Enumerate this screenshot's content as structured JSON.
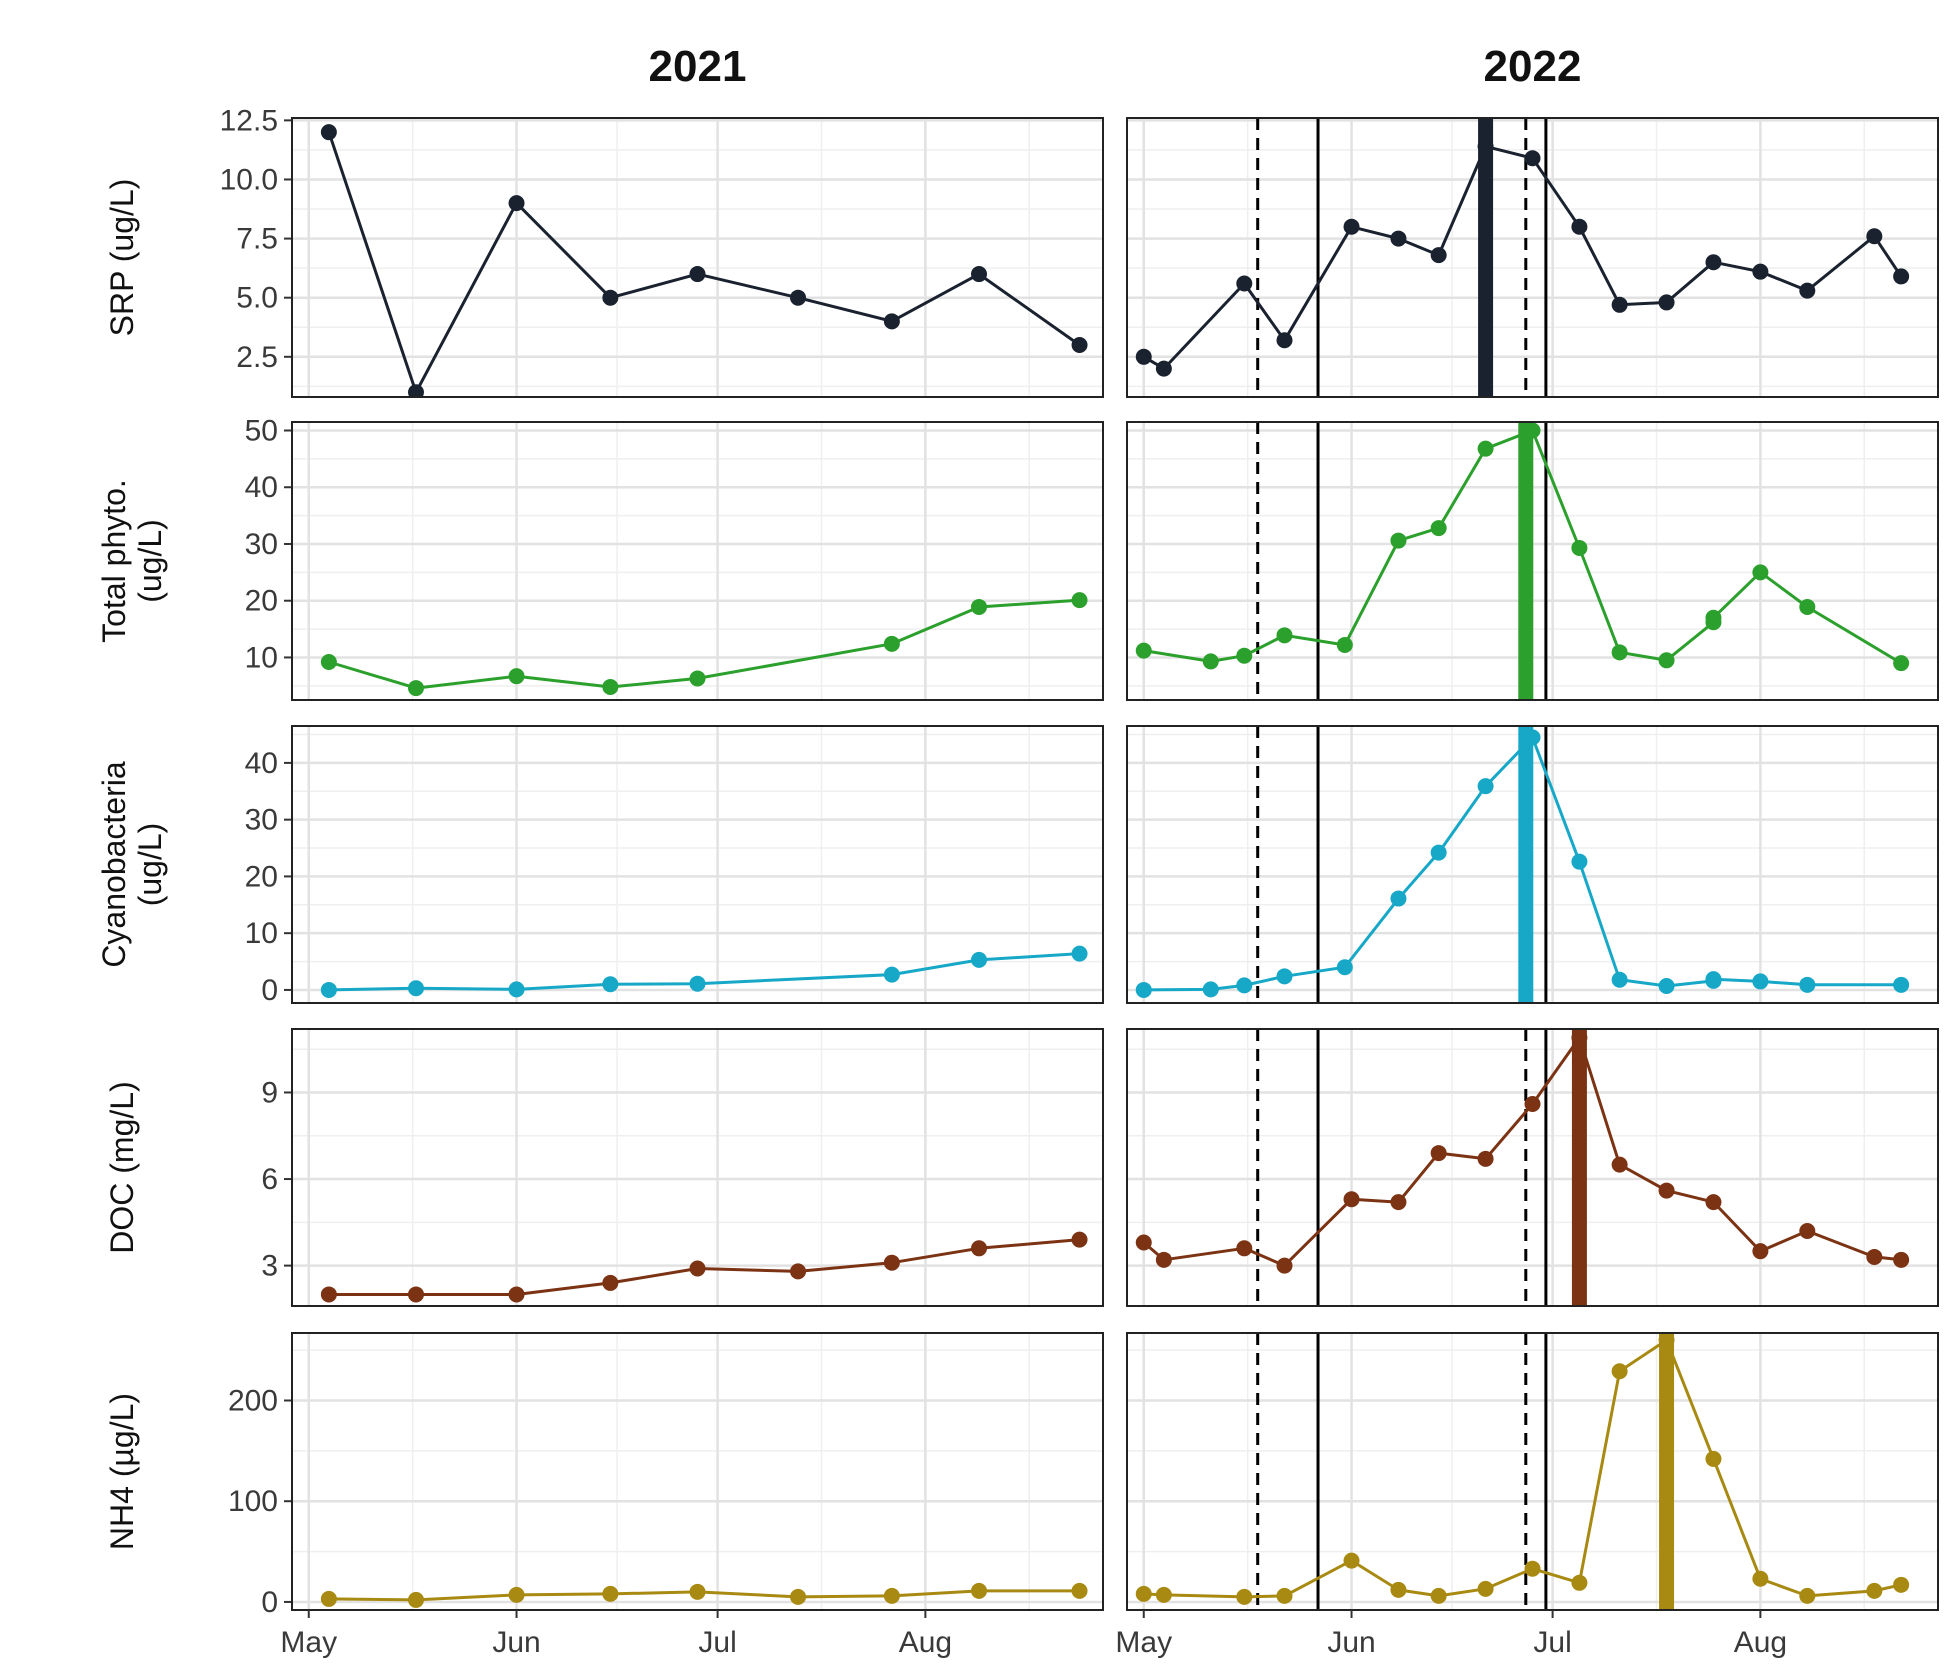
{
  "facets": [
    "2021",
    "2022"
  ],
  "x_ticks": [
    "May",
    "Jun",
    "Jul",
    "Aug"
  ],
  "chart_data": [
    {
      "type": "line",
      "ylabel": [
        "SRP (ug/L)"
      ],
      "ylim": [
        0.8,
        12.6
      ],
      "yticks": [
        2.5,
        5.0,
        7.5,
        10.0,
        12.5
      ],
      "ytick_labels": [
        "2.5",
        "5.0",
        "7.5",
        "10.0",
        "12.5"
      ],
      "color": "#1a2230",
      "series": [
        {
          "facet": "2021",
          "x": [
            "2021-05-04",
            "2021-05-17",
            "2021-06-01",
            "2021-06-15",
            "2021-06-28",
            "2021-07-13",
            "2021-07-27",
            "2021-08-09",
            "2021-08-24"
          ],
          "values": [
            12.0,
            1.0,
            9.0,
            5.0,
            6.0,
            5.0,
            4.0,
            6.0,
            3.0
          ]
        },
        {
          "facet": "2022",
          "x": [
            "2022-05-01",
            "2022-05-04",
            "2022-05-16",
            "2022-05-22",
            "2022-06-01",
            "2022-06-08",
            "2022-06-14",
            "2022-06-21",
            "2022-06-28",
            "2022-07-05",
            "2022-07-11",
            "2022-07-18",
            "2022-07-25",
            "2022-08-01",
            "2022-08-08",
            "2022-08-18",
            "2022-08-22"
          ],
          "values": [
            2.5,
            2.0,
            5.6,
            3.2,
            8.0,
            7.5,
            6.8,
            11.4,
            10.9,
            8.0,
            4.7,
            4.8,
            6.5,
            6.1,
            5.3,
            7.6,
            5.9
          ]
        }
      ],
      "peak_date": "2022-06-21"
    },
    {
      "type": "line",
      "ylabel": [
        "Total phyto.",
        "(ug/L)"
      ],
      "ylim": [
        2.5,
        51.5
      ],
      "yticks": [
        10,
        20,
        30,
        40,
        50
      ],
      "ytick_labels": [
        "10",
        "20",
        "30",
        "40",
        "50"
      ],
      "color": "#2ca02c",
      "series": [
        {
          "facet": "2021",
          "x": [
            "2021-05-04",
            "2021-05-17",
            "2021-06-01",
            "2021-06-15",
            "2021-06-28",
            "2021-07-27",
            "2021-08-09",
            "2021-08-24"
          ],
          "values": [
            9.2,
            4.6,
            6.7,
            4.8,
            6.3,
            12.4,
            18.9,
            20.1
          ]
        },
        {
          "facet": "2022",
          "x": [
            "2022-05-01",
            "2022-05-11",
            "2022-05-16",
            "2022-05-22",
            "2022-05-31",
            "2022-06-08",
            "2022-06-14",
            "2022-06-21",
            "2022-06-28",
            "2022-07-05",
            "2022-07-11",
            "2022-07-18",
            "2022-07-25",
            "2022-07-25",
            "2022-08-01",
            "2022-08-08",
            "2022-08-22"
          ],
          "values": [
            11.2,
            9.3,
            10.3,
            13.9,
            12.2,
            30.6,
            32.8,
            46.8,
            50.0,
            29.3,
            10.9,
            9.5,
            16.2,
            17.0,
            25.0,
            18.9,
            9.0
          ]
        }
      ],
      "peak_date": "2022-06-27"
    },
    {
      "type": "line",
      "ylabel": [
        "Cyanobacteria",
        "(ug/L)"
      ],
      "ylim": [
        -2.3,
        46.5
      ],
      "yticks": [
        0,
        10,
        20,
        30,
        40
      ],
      "ytick_labels": [
        "0",
        "10",
        "20",
        "30",
        "40"
      ],
      "color": "#17a8c8",
      "series": [
        {
          "facet": "2021",
          "x": [
            "2021-05-04",
            "2021-05-17",
            "2021-06-01",
            "2021-06-15",
            "2021-06-28",
            "2021-07-27",
            "2021-08-09",
            "2021-08-24"
          ],
          "values": [
            0.0,
            0.3,
            0.1,
            1.0,
            1.1,
            2.7,
            5.3,
            6.4
          ]
        },
        {
          "facet": "2022",
          "x": [
            "2022-05-01",
            "2022-05-11",
            "2022-05-16",
            "2022-05-22",
            "2022-05-31",
            "2022-06-08",
            "2022-06-14",
            "2022-06-21",
            "2022-06-28",
            "2022-07-05",
            "2022-07-11",
            "2022-07-18",
            "2022-07-25",
            "2022-07-25",
            "2022-08-01",
            "2022-08-08",
            "2022-08-22"
          ],
          "values": [
            0.0,
            0.1,
            0.8,
            2.4,
            4.0,
            16.1,
            24.2,
            35.9,
            44.5,
            22.6,
            1.8,
            0.7,
            1.6,
            1.9,
            1.5,
            0.9,
            0.9
          ]
        }
      ],
      "peak_date": "2022-06-27"
    },
    {
      "type": "line",
      "ylabel": [
        "DOC (mg/L)"
      ],
      "ylim": [
        1.6,
        11.2
      ],
      "yticks": [
        3,
        6,
        9
      ],
      "ytick_labels": [
        "3",
        "6",
        "9"
      ],
      "color": "#7b3314",
      "series": [
        {
          "facet": "2021",
          "x": [
            "2021-05-04",
            "2021-05-17",
            "2021-06-01",
            "2021-06-15",
            "2021-06-28",
            "2021-07-13",
            "2021-07-27",
            "2021-08-09",
            "2021-08-24"
          ],
          "values": [
            2.0,
            2.0,
            2.0,
            2.4,
            2.9,
            2.8,
            3.1,
            3.6,
            3.9
          ]
        },
        {
          "facet": "2022",
          "x": [
            "2022-05-01",
            "2022-05-04",
            "2022-05-16",
            "2022-05-22",
            "2022-06-01",
            "2022-06-08",
            "2022-06-14",
            "2022-06-21",
            "2022-06-28",
            "2022-07-05",
            "2022-07-11",
            "2022-07-18",
            "2022-07-25",
            "2022-08-01",
            "2022-08-08",
            "2022-08-18",
            "2022-08-22"
          ],
          "values": [
            3.8,
            3.2,
            3.6,
            3.0,
            5.3,
            5.2,
            6.9,
            6.7,
            8.6,
            10.9,
            6.5,
            5.6,
            5.2,
            3.5,
            4.2,
            3.3,
            3.2
          ]
        }
      ],
      "peak_date": "2022-07-05"
    },
    {
      "type": "line",
      "ylabel": [
        "NH4 (µg/L)"
      ],
      "ylim": [
        -8,
        267
      ],
      "yticks": [
        0,
        100,
        200
      ],
      "ytick_labels": [
        "0",
        "100",
        "200"
      ],
      "color": "#a88a12",
      "series": [
        {
          "facet": "2021",
          "x": [
            "2021-05-04",
            "2021-05-17",
            "2021-06-01",
            "2021-06-15",
            "2021-06-28",
            "2021-07-13",
            "2021-07-27",
            "2021-08-09",
            "2021-08-24"
          ],
          "values": [
            3,
            2,
            7,
            8,
            10,
            5,
            6,
            11,
            11
          ]
        },
        {
          "facet": "2022",
          "x": [
            "2022-05-01",
            "2022-05-04",
            "2022-05-16",
            "2022-05-22",
            "2022-06-01",
            "2022-06-08",
            "2022-06-14",
            "2022-06-21",
            "2022-06-28",
            "2022-07-05",
            "2022-07-11",
            "2022-07-18",
            "2022-07-25",
            "2022-08-01",
            "2022-08-08",
            "2022-08-18",
            "2022-08-22"
          ],
          "values": [
            8,
            7,
            5,
            6,
            41,
            12,
            6,
            13,
            33,
            19,
            229,
            260,
            142,
            23,
            6,
            11,
            17
          ]
        }
      ],
      "peak_date": "2022-07-18"
    }
  ],
  "reference_lines": {
    "dashed": [
      "2022-05-18",
      "2022-06-27"
    ],
    "solid": [
      "2022-05-27",
      "2022-06-30"
    ],
    "color": "#000000"
  }
}
